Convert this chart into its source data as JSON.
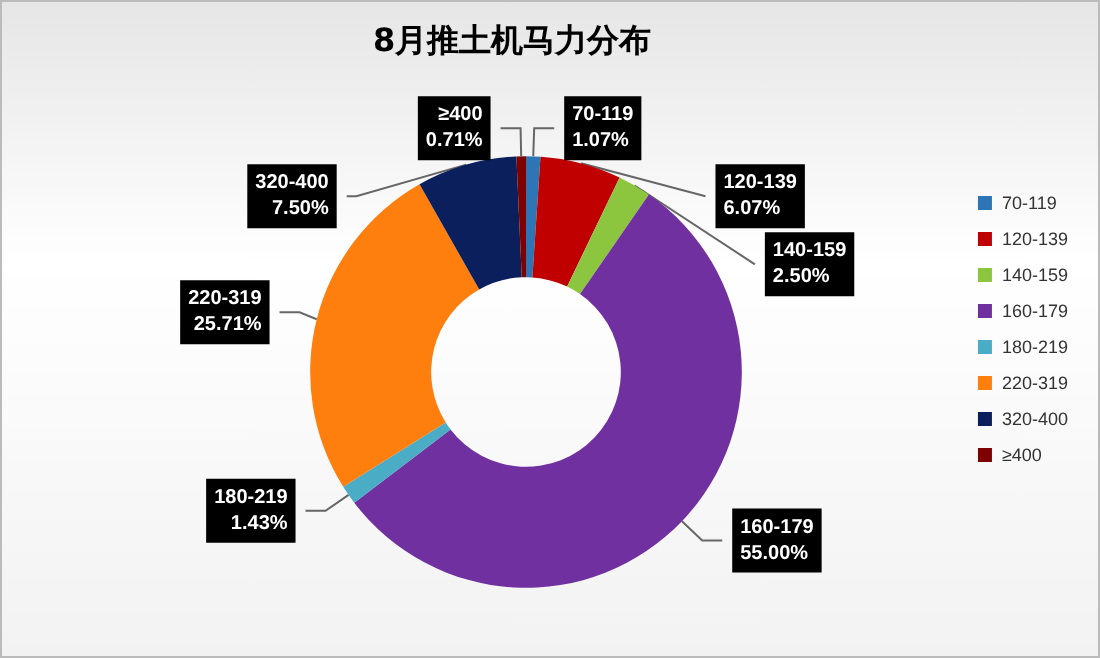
{
  "chart_data": {
    "type": "donut",
    "title": "8月推土机马力分布",
    "categories": [
      "70-119",
      "120-139",
      "140-159",
      "160-179",
      "180-219",
      "220-319",
      "320-400",
      "≥400"
    ],
    "values": [
      1.07,
      6.07,
      2.5,
      55.0,
      1.43,
      25.71,
      7.5,
      0.71
    ],
    "value_labels": [
      "1.07%",
      "6.07%",
      "2.50%",
      "55.00%",
      "1.43%",
      "25.71%",
      "7.50%",
      "0.71%"
    ],
    "colors": [
      "#2e75b6",
      "#c00000",
      "#8cc63f",
      "#7030a0",
      "#4bacc6",
      "#ff7f0e",
      "#0b1f5c",
      "#7f0000"
    ],
    "legend": "right"
  }
}
